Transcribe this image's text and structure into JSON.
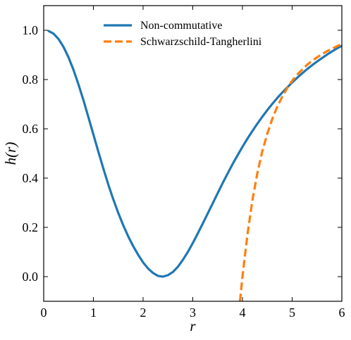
{
  "chart_data": {
    "type": "line",
    "title": "",
    "xlabel": "r",
    "ylabel": "h(r)",
    "xlim": [
      0,
      6
    ],
    "ylim": [
      -0.1,
      1.1
    ],
    "xticks": [
      0,
      1,
      2,
      3,
      4,
      5,
      6
    ],
    "xtick_labels": [
      "0",
      "1",
      "2",
      "3",
      "4",
      "5",
      "6"
    ],
    "yticks": [
      0.0,
      0.2,
      0.4,
      0.6,
      0.8,
      1.0
    ],
    "ytick_labels": [
      "0.0",
      "0.2",
      "0.4",
      "0.6",
      "0.8",
      "1.0"
    ],
    "grid": false,
    "legend_position": "top-center",
    "series": [
      {
        "name": "Non-commutative",
        "style": "solid",
        "color": "#1f77b4",
        "x": [
          0.1,
          0.2,
          0.3,
          0.4,
          0.5,
          0.6,
          0.7,
          0.8,
          0.9,
          1.0,
          1.1,
          1.2,
          1.3,
          1.4,
          1.5,
          1.6,
          1.7,
          1.8,
          1.9,
          2.0,
          2.1,
          2.2,
          2.3,
          2.4,
          2.5,
          2.6,
          2.7,
          2.8,
          2.9,
          3.0,
          3.1,
          3.2,
          3.3,
          3.4,
          3.5,
          3.6,
          3.7,
          3.8,
          3.9,
          4.0,
          4.1,
          4.2,
          4.3,
          4.4,
          4.5,
          4.6,
          4.7,
          4.8,
          4.9,
          5.0,
          5.1,
          5.2,
          5.3,
          5.4,
          5.5,
          5.6,
          5.7,
          5.8,
          5.9,
          6.0
        ],
        "y": [
          0.997,
          0.986,
          0.964,
          0.932,
          0.89,
          0.839,
          0.78,
          0.716,
          0.647,
          0.577,
          0.507,
          0.439,
          0.374,
          0.314,
          0.259,
          0.209,
          0.164,
          0.124,
          0.089,
          0.058,
          0.033,
          0.015,
          0.003,
          0.0,
          0.006,
          0.019,
          0.04,
          0.068,
          0.1,
          0.136,
          0.175,
          0.215,
          0.256,
          0.297,
          0.338,
          0.379,
          0.418,
          0.456,
          0.492,
          0.527,
          0.56,
          0.591,
          0.621,
          0.649,
          0.676,
          0.701,
          0.725,
          0.747,
          0.768,
          0.788,
          0.807,
          0.825,
          0.842,
          0.858,
          0.873,
          0.887,
          0.901,
          0.914,
          0.926,
          0.937
        ]
      },
      {
        "name": "Schwarzschild-Tangherlini",
        "style": "dashed",
        "color": "#ff7f0e",
        "x": [
          3.95,
          4.0,
          4.1,
          4.2,
          4.3,
          4.4,
          4.5,
          4.6,
          4.7,
          4.8,
          4.9,
          5.0,
          5.1,
          5.2,
          5.3,
          5.4,
          5.5,
          5.6,
          5.7,
          5.8,
          5.9,
          6.0
        ],
        "y": [
          -0.1,
          0.0,
          0.17,
          0.31,
          0.42,
          0.51,
          0.58,
          0.64,
          0.69,
          0.73,
          0.765,
          0.795,
          0.82,
          0.84,
          0.86,
          0.876,
          0.89,
          0.903,
          0.915,
          0.925,
          0.935,
          0.944
        ]
      }
    ]
  }
}
